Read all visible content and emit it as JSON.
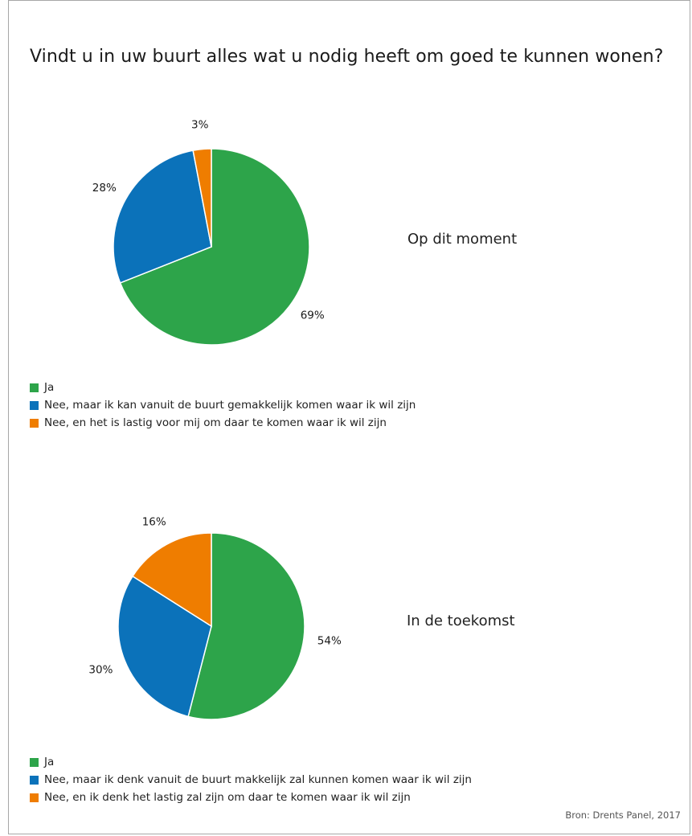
{
  "title": "Vindt u in uw buurt alles wat u nodig heeft om goed te kunnen wonen?",
  "source": "Bron: Drents Panel, 2017",
  "colors": {
    "green": "#2da44a",
    "blue": "#0b72ba",
    "orange": "#ef7d00"
  },
  "chart_data": [
    {
      "type": "pie",
      "caption": "Op dit moment",
      "slices": [
        {
          "label": "Ja",
          "value": 69,
          "value_label": "69%",
          "color": "#2da44a"
        },
        {
          "label": "Nee, maar ik kan vanuit de buurt gemakkelijk komen waar ik wil zijn",
          "value": 28,
          "value_label": "28%",
          "color": "#0b72ba"
        },
        {
          "label": "Nee, en het is lastig voor mij om daar te komen waar ik wil zijn",
          "value": 3,
          "value_label": "3%",
          "color": "#ef7d00"
        }
      ],
      "legend_placement": "bottom"
    },
    {
      "type": "pie",
      "caption": "In de toekomst",
      "slices": [
        {
          "label": "Ja",
          "value": 54,
          "value_label": "54%",
          "color": "#2da44a"
        },
        {
          "label": "Nee, maar ik denk vanuit de buurt makkelijk zal kunnen komen waar ik wil zijn",
          "value": 30,
          "value_label": "30%",
          "color": "#0b72ba"
        },
        {
          "label": "Nee, en ik denk het lastig zal zijn om daar te komen waar ik wil zijn",
          "value": 16,
          "value_label": "16%",
          "color": "#ef7d00"
        }
      ],
      "legend_placement": "bottom"
    }
  ]
}
